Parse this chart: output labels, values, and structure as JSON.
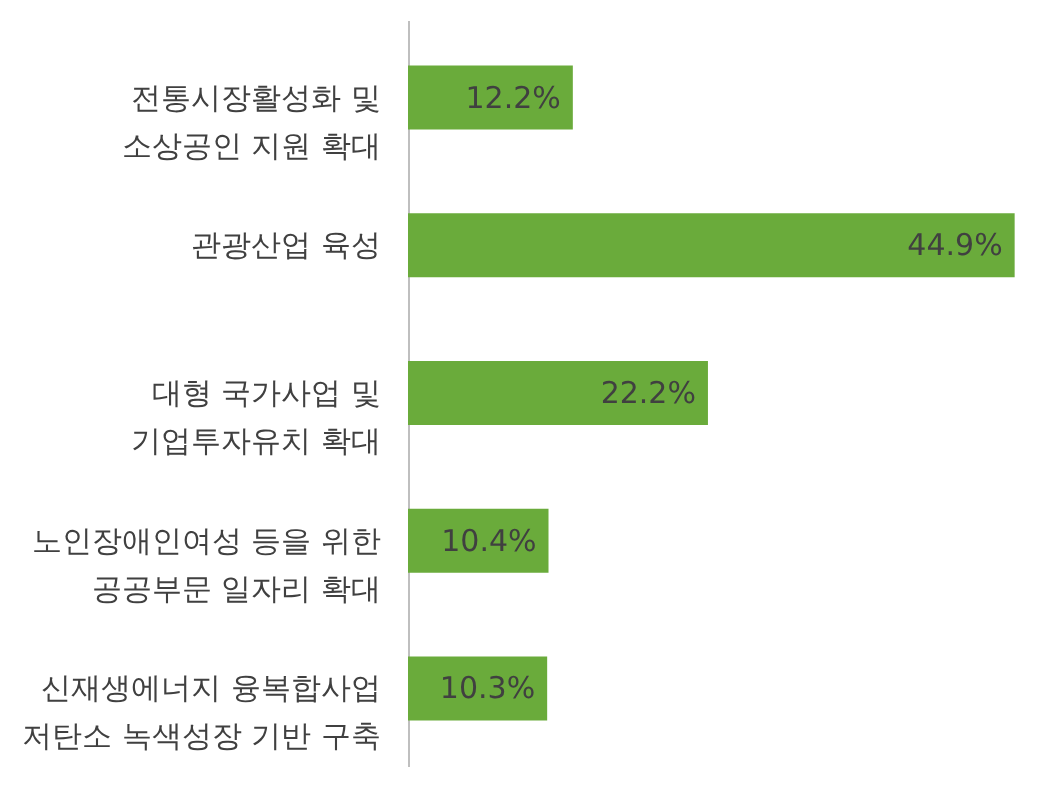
{
  "chart_data": {
    "type": "bar",
    "orientation": "horizontal",
    "categories": [
      "전통시장활성화 및\n소상공인 지원 확대",
      "관광산업 육성",
      "대형 국가사업 및\n기업투자유치 확대",
      "노인장애인여성 등을 위한\n공공부문 일자리 확대",
      "신재생에너지 융복합사업\n저탄소 녹색성장 기반 구축"
    ],
    "values": [
      12.2,
      44.9,
      22.2,
      10.4,
      10.3
    ],
    "value_labels": [
      "12.2%",
      "44.9%",
      "22.2%",
      "10.4%",
      "10.3%"
    ],
    "color": "#6aab3b"
  }
}
